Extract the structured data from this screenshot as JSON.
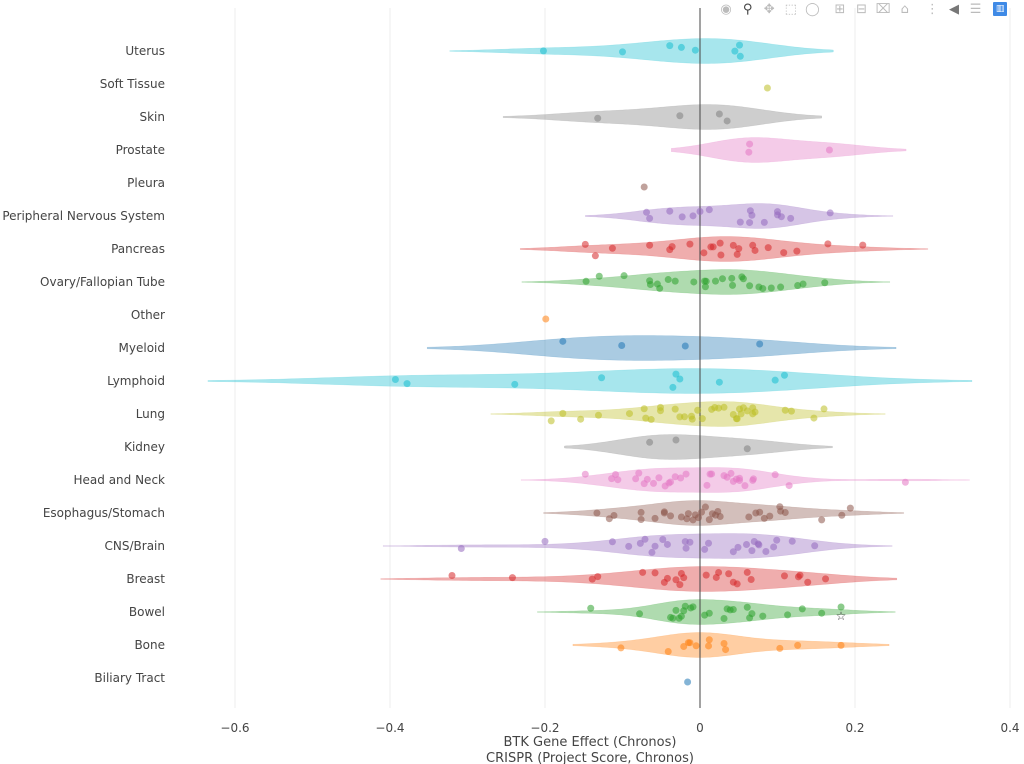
{
  "modebar": {
    "buttons": [
      {
        "icon": "camera-icon",
        "label": "Download plot as a png"
      },
      {
        "icon": "zoom-icon",
        "label": "Zoom",
        "active": true
      },
      {
        "icon": "pan-icon",
        "label": "Pan"
      },
      {
        "icon": "box-select-icon",
        "label": "Box Select"
      },
      {
        "icon": "lasso-select-icon",
        "label": "Lasso Select"
      },
      {
        "icon": "zoom-in-icon",
        "label": "Zoom in"
      },
      {
        "icon": "zoom-out-icon",
        "label": "Zoom out"
      },
      {
        "icon": "autoscale-icon",
        "label": "Autoscale"
      },
      {
        "icon": "home-icon",
        "label": "Reset axes"
      },
      {
        "icon": "spike-lines-icon",
        "label": "Toggle Spike Lines"
      },
      {
        "icon": "hover-closest-icon",
        "label": "Show closest data on hover"
      },
      {
        "icon": "hover-compare-icon",
        "label": "Compare data on hover"
      },
      {
        "icon": "plotly-logo-icon",
        "label": "Produced with Plotly"
      }
    ]
  },
  "chart_data": {
    "type": "violin",
    "orientation": "horizontal",
    "xlabel_lines": [
      "BTK Gene Effect (Chronos)",
      "CRISPR (Project Score, Chronos)"
    ],
    "xlim": [
      -0.66,
      0.4
    ],
    "xticks": [
      -0.6,
      -0.4,
      -0.2,
      0,
      0.2,
      0.4
    ],
    "xtick_labels": [
      "−0.6",
      "−0.4",
      "−0.2",
      "0",
      "0.2",
      "0.4"
    ],
    "grid": true,
    "zeroline": true,
    "show_points": "all",
    "categories": [
      {
        "name": "Uterus",
        "color": "#17becf",
        "span": [
          -0.323,
          0.172
        ],
        "values": [
          -0.202,
          -0.1,
          -0.039,
          -0.024,
          -0.006,
          0.045,
          0.051,
          0.052
        ]
      },
      {
        "name": "Soft Tissue",
        "color": "#bcbd22",
        "values": [
          0.087
        ]
      },
      {
        "name": "Skin",
        "color": "#7f7f7f",
        "span": [
          -0.254,
          0.157
        ],
        "values": [
          -0.132,
          -0.026,
          0.025,
          0.035
        ]
      },
      {
        "name": "Prostate",
        "color": "#e377c2",
        "span": [
          -0.037,
          0.266
        ],
        "values": [
          0.063,
          0.064,
          0.167
        ]
      },
      {
        "name": "Pleura",
        "color": "#8c564b",
        "values": [
          -0.072
        ]
      },
      {
        "name": "Peripheral Nervous System",
        "color": "#9467bd",
        "span": [
          -0.148,
          0.249
        ],
        "values": [
          -0.069,
          -0.065,
          -0.039,
          -0.023,
          -0.009,
          0.0,
          0.012,
          0.052,
          0.064,
          0.065,
          0.067,
          0.083,
          0.1,
          0.1,
          0.105,
          0.117,
          0.168
        ]
      },
      {
        "name": "Pancreas",
        "color": "#d62728",
        "span": [
          -0.232,
          0.294
        ],
        "values": [
          -0.148,
          -0.135,
          -0.113,
          -0.065,
          -0.039,
          -0.036,
          -0.013,
          0.005,
          0.014,
          0.017,
          0.026,
          0.027,
          0.043,
          0.048,
          0.05,
          0.068,
          0.071,
          0.088,
          0.108,
          0.125,
          0.165,
          0.21
        ]
      },
      {
        "name": "Ovary/Fallopian Tube",
        "color": "#2ca02c",
        "span": [
          -0.23,
          0.245
        ],
        "values": [
          -0.147,
          -0.13,
          -0.098,
          -0.065,
          -0.064,
          -0.055,
          -0.052,
          -0.041,
          -0.032,
          -0.008,
          0.006,
          0.007,
          0.008,
          0.02,
          0.029,
          0.041,
          0.042,
          0.054,
          0.056,
          0.064,
          0.076,
          0.081,
          0.092,
          0.104,
          0.126,
          0.133,
          0.161
        ]
      },
      {
        "name": "Other",
        "color": "#ff7f0e",
        "values": [
          -0.199
        ]
      },
      {
        "name": "Myeloid",
        "color": "#1f77b4",
        "span": [
          -0.352,
          0.253
        ],
        "values": [
          -0.177,
          -0.101,
          -0.019,
          0.077
        ]
      },
      {
        "name": "Lymphoid",
        "color": "#17becf",
        "span": [
          -0.635,
          0.351
        ],
        "values": [
          -0.393,
          -0.378,
          -0.239,
          -0.127,
          -0.035,
          -0.031,
          -0.026,
          0.025,
          0.097,
          0.109
        ]
      },
      {
        "name": "Lung",
        "color": "#bcbd22",
        "span": [
          -0.27,
          0.239
        ],
        "values": [
          -0.192,
          -0.177,
          -0.154,
          -0.131,
          -0.091,
          -0.072,
          -0.07,
          -0.063,
          -0.051,
          -0.051,
          -0.032,
          -0.026,
          -0.02,
          -0.011,
          -0.01,
          -0.003,
          0.003,
          0.015,
          0.019,
          0.024,
          0.031,
          0.043,
          0.047,
          0.048,
          0.051,
          0.053,
          0.056,
          0.061,
          0.068,
          0.068,
          0.071,
          0.11,
          0.118,
          0.147,
          0.16
        ]
      },
      {
        "name": "Kidney",
        "color": "#7f7f7f",
        "span": [
          -0.175,
          0.171
        ],
        "values": [
          -0.065,
          -0.031,
          0.061
        ]
      },
      {
        "name": "Head and Neck",
        "color": "#e377c2",
        "span": [
          -0.231,
          0.348
        ],
        "values": [
          -0.148,
          -0.114,
          -0.109,
          -0.106,
          -0.083,
          -0.079,
          -0.072,
          -0.068,
          -0.06,
          -0.053,
          -0.045,
          -0.04,
          -0.038,
          -0.032,
          -0.025,
          -0.018,
          0.009,
          0.013,
          0.015,
          0.031,
          0.035,
          0.04,
          0.043,
          0.047,
          0.051,
          0.051,
          0.058,
          0.068,
          0.069,
          0.097,
          0.115,
          0.265
        ]
      },
      {
        "name": "Esophagus/Stomach",
        "color": "#8c564b",
        "span": [
          -0.202,
          0.263
        ],
        "values": [
          -0.133,
          -0.117,
          -0.111,
          -0.076,
          -0.076,
          -0.058,
          -0.046,
          -0.046,
          -0.038,
          -0.024,
          -0.017,
          -0.015,
          -0.009,
          -0.006,
          -0.002,
          0.002,
          0.007,
          0.012,
          0.016,
          0.02,
          0.023,
          0.026,
          0.063,
          0.072,
          0.077,
          0.083,
          0.09,
          0.103,
          0.104,
          0.11,
          0.157,
          0.183,
          0.194
        ]
      },
      {
        "name": "CNS/Brain",
        "color": "#9467bd",
        "span": [
          -0.409,
          0.248
        ],
        "values": [
          -0.308,
          -0.2,
          -0.113,
          -0.092,
          -0.077,
          -0.071,
          -0.062,
          -0.058,
          -0.048,
          -0.042,
          -0.019,
          -0.018,
          -0.013,
          0.006,
          0.011,
          0.043,
          0.049,
          0.06,
          0.067,
          0.07,
          0.075,
          0.076,
          0.085,
          0.095,
          0.099,
          0.119,
          0.148
        ]
      },
      {
        "name": "Breast",
        "color": "#d62728",
        "span": [
          -0.412,
          0.254
        ],
        "values": [
          -0.32,
          -0.242,
          -0.139,
          -0.132,
          -0.074,
          -0.058,
          -0.046,
          -0.042,
          -0.031,
          -0.026,
          -0.024,
          -0.021,
          0.008,
          0.021,
          0.024,
          0.037,
          0.043,
          0.048,
          0.061,
          0.066,
          0.109,
          0.127,
          0.129,
          0.139,
          0.162
        ]
      },
      {
        "name": "Bowel",
        "color": "#2ca02c",
        "span": [
          -0.21,
          0.252
        ],
        "values": [
          -0.141,
          -0.078,
          -0.038,
          -0.035,
          -0.031,
          -0.027,
          -0.024,
          -0.021,
          -0.019,
          -0.012,
          -0.009,
          0.006,
          0.012,
          0.031,
          0.035,
          0.039,
          0.043,
          0.061,
          0.064,
          0.067,
          0.081,
          0.113,
          0.132,
          0.157,
          0.182
        ],
        "highlight": 0.182
      },
      {
        "name": "Bone",
        "color": "#ff7f0e",
        "span": [
          -0.164,
          0.244
        ],
        "values": [
          -0.102,
          -0.041,
          -0.021,
          -0.015,
          -0.013,
          -0.005,
          0.011,
          0.012,
          0.031,
          0.033,
          0.103,
          0.126,
          0.182
        ]
      },
      {
        "name": "Biliary Tract",
        "color": "#1f77b4",
        "values": [
          -0.016
        ]
      }
    ]
  }
}
